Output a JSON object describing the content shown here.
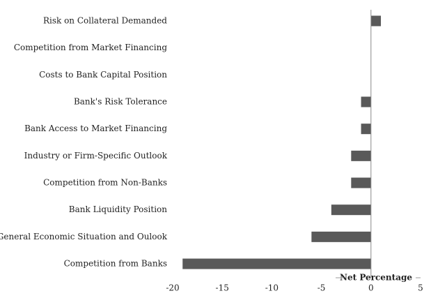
{
  "chart_data": {
    "type": "barh",
    "categories": [
      "Risk on Collateral Demanded",
      "Competition from Market Financing",
      "Costs to Bank Capital Position",
      "Bank's Risk Tolerance",
      "Bank Access to Market Financing",
      "Industry or Firm-Specific Outlook",
      "Competition from Non-Banks",
      "Bank Liquidity Position",
      "General Economic Situation and Oulook",
      "Competition from Banks"
    ],
    "values": [
      1,
      0,
      0,
      -1,
      -1,
      -2,
      -2,
      -4,
      -6,
      -19
    ],
    "color": "#595959",
    "x_label": "Net Percentage",
    "xlim": [
      -20,
      5
    ],
    "xticks": [
      -20,
      -15,
      -10,
      -5,
      0,
      5
    ]
  }
}
